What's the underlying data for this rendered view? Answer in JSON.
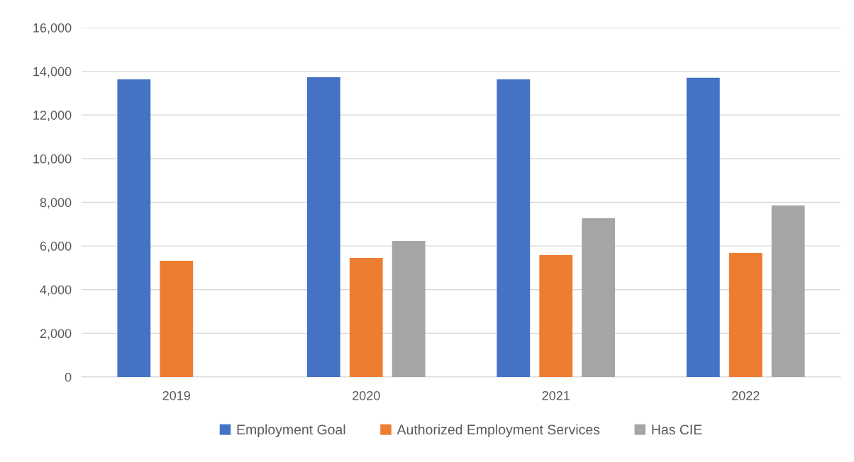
{
  "chart_data": {
    "type": "bar",
    "categories": [
      "2019",
      "2020",
      "2021",
      "2022"
    ],
    "series": [
      {
        "name": "Employment Goal",
        "color": "#4472c4",
        "values": [
          13630,
          13730,
          13630,
          13700
        ]
      },
      {
        "name": "Authorized Employment Services",
        "color": "#ed7d31",
        "values": [
          5320,
          5450,
          5580,
          5680
        ]
      },
      {
        "name": "Has CIE",
        "color": "#a5a5a5",
        "values": [
          null,
          6230,
          7270,
          7850
        ]
      }
    ],
    "ylim": [
      0,
      16000
    ],
    "yticks": [
      {
        "value": 0,
        "label": "0"
      },
      {
        "value": 2000,
        "label": "2,000"
      },
      {
        "value": 4000,
        "label": "4,000"
      },
      {
        "value": 6000,
        "label": "6,000"
      },
      {
        "value": 8000,
        "label": "8,000"
      },
      {
        "value": 10000,
        "label": "10,000"
      },
      {
        "value": 12000,
        "label": "12,000"
      },
      {
        "value": 14000,
        "label": "14,000"
      },
      {
        "value": 16000,
        "label": "16,000"
      }
    ],
    "grid": "y",
    "legend": "bottom"
  }
}
